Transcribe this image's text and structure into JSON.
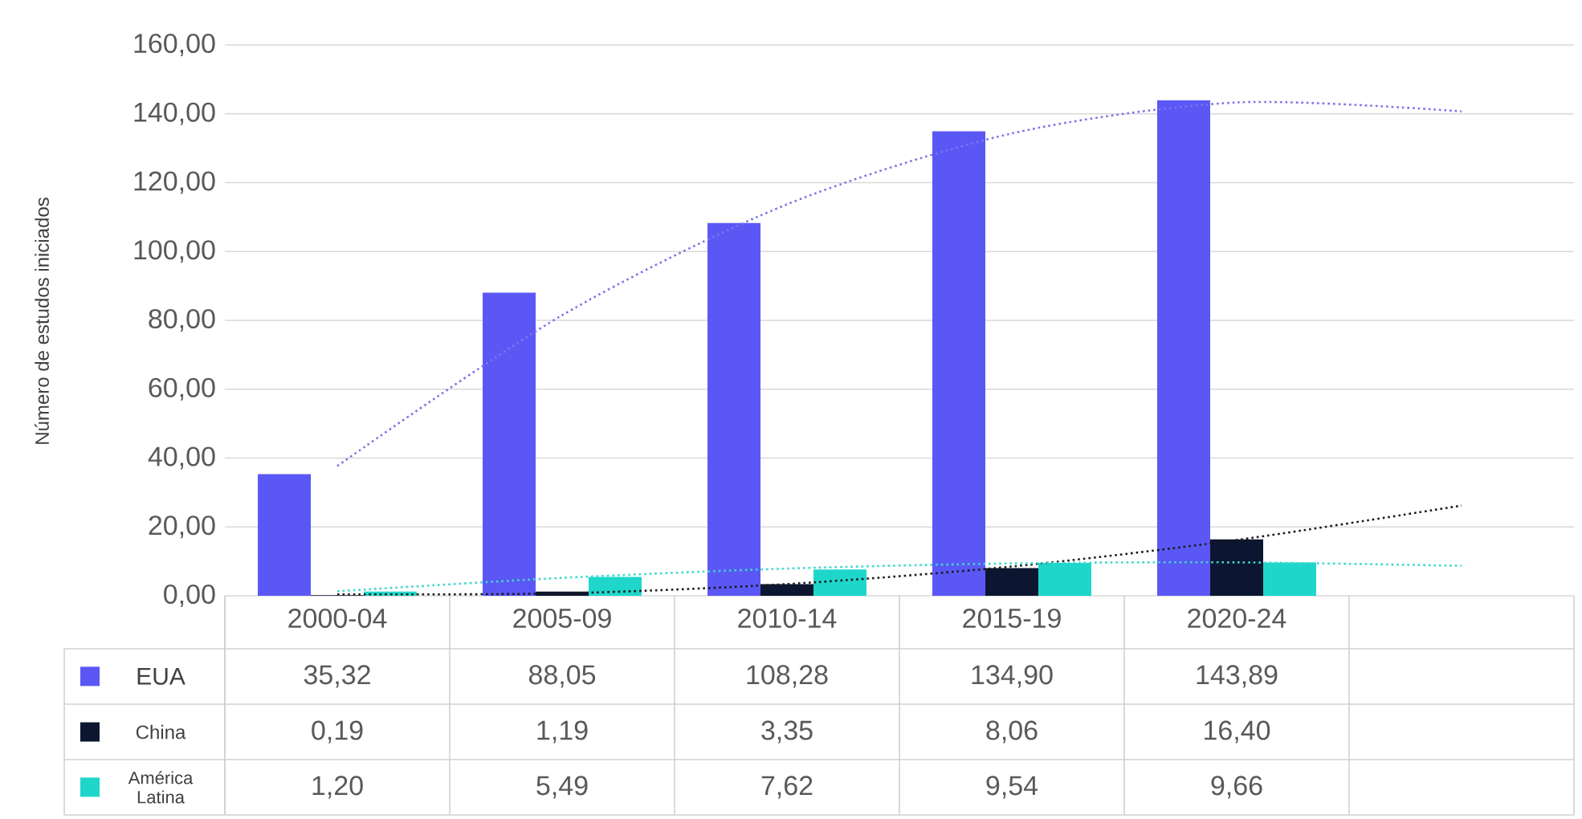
{
  "chart_data": {
    "type": "bar",
    "ylabel": "Número de estudos iniciados",
    "categories": [
      "2000-04",
      "2005-09",
      "2010-14",
      "2015-19",
      "2020-24",
      null
    ],
    "ylim": [
      0,
      160
    ],
    "yticks": [
      {
        "value": 0,
        "label": "0,00"
      },
      {
        "value": 20,
        "label": "20,00"
      },
      {
        "value": 40,
        "label": "40,00"
      },
      {
        "value": 60,
        "label": "60,00"
      },
      {
        "value": 80,
        "label": "80,00"
      },
      {
        "value": 100,
        "label": "100,00"
      },
      {
        "value": 120,
        "label": "120,00"
      },
      {
        "value": 140,
        "label": "140,00"
      },
      {
        "value": 160,
        "label": "160,00"
      }
    ],
    "grid": "y",
    "legend": "bottom left",
    "series": [
      {
        "name": "EUA",
        "color": "#5b57f5",
        "values": [
          35.32,
          88.05,
          108.28,
          134.9,
          143.89,
          null
        ],
        "value_labels": [
          "35,32",
          "88,05",
          "108,28",
          "134,90",
          "143,89",
          null
        ]
      },
      {
        "name": "China",
        "color": "#0d1630",
        "values": [
          0.19,
          1.19,
          3.35,
          8.06,
          16.4,
          null
        ],
        "value_labels": [
          "0,19",
          "1,19",
          "3,35",
          "8,06",
          "16,40",
          null
        ]
      },
      {
        "name": "América Latina",
        "color": "#1fd6ca",
        "values": [
          1.2,
          5.49,
          7.62,
          9.54,
          9.66,
          null
        ],
        "value_labels": [
          "1,20",
          "5,49",
          "7,62",
          "9,54",
          "9,66",
          null
        ]
      },
      {
        "type": "line",
        "line_style": "dotted",
        "marker": "none",
        "color": "#7d74ea",
        "values": [
          37.7,
          81.5,
          113.7,
          134.3,
          143.3,
          140.7
        ]
      },
      {
        "type": "line",
        "line_style": "dotted",
        "marker": "none",
        "color": "#1a1a1a",
        "values": [
          0.4,
          0.7,
          3.4,
          8.5,
          16.2,
          26.2
        ]
      },
      {
        "type": "line",
        "line_style": "dotted",
        "marker": "none",
        "color": "#3dd7d0",
        "values": [
          1.3,
          5.2,
          7.9,
          9.4,
          9.7,
          8.7
        ]
      }
    ]
  }
}
